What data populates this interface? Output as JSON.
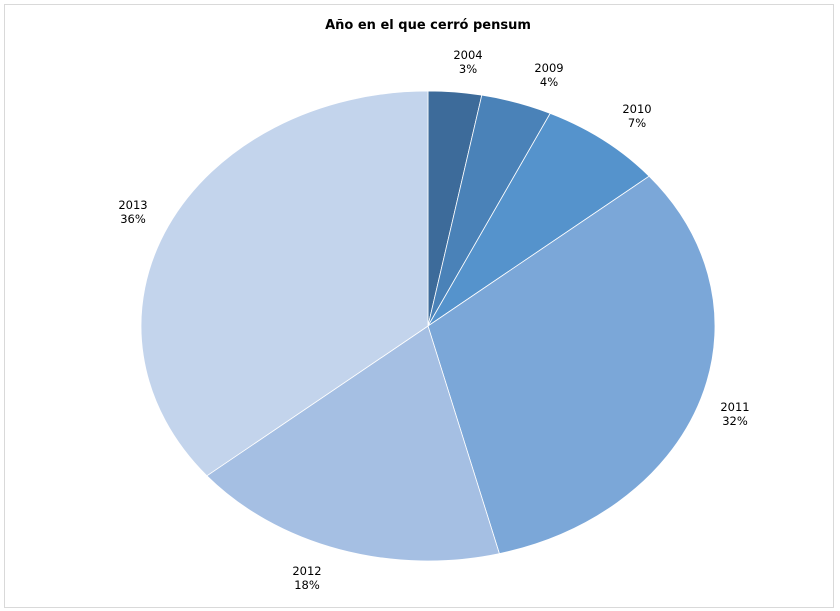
{
  "chart_data": {
    "type": "pie",
    "title": "Año en el que cerró pensum",
    "slices": [
      {
        "label": "2004",
        "value": 3,
        "value_label": "3%",
        "color": "#3d6b9a"
      },
      {
        "label": "2009",
        "value": 4,
        "value_label": "4%",
        "color": "#4a82b8"
      },
      {
        "label": "2010",
        "value": 7,
        "value_label": "7%",
        "color": "#5593cc"
      },
      {
        "label": "2011",
        "value": 32,
        "value_label": "32%",
        "color": "#7ba7d8"
      },
      {
        "label": "2012",
        "value": 18,
        "value_label": "18%",
        "color": "#a5bfe3"
      },
      {
        "label": "2013",
        "value": 36,
        "value_label": "36%",
        "color": "#c3d4ec"
      }
    ],
    "start_angle_deg": 0,
    "direction": "clockwise",
    "legend": "none"
  }
}
